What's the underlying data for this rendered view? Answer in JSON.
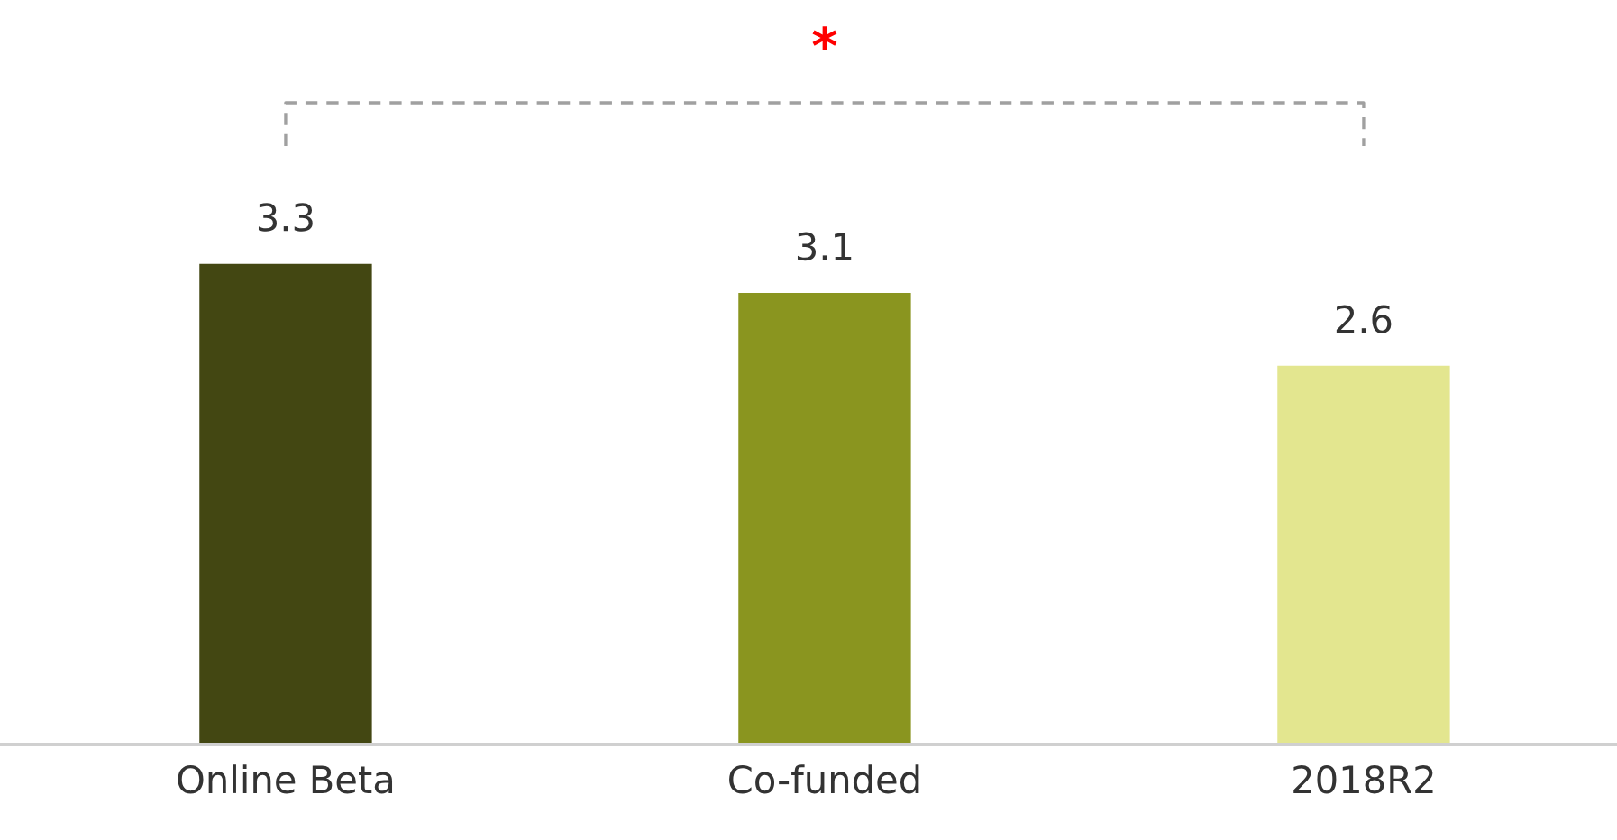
{
  "chart_data": {
    "type": "bar",
    "categories": [
      "Online Beta",
      "Co-funded",
      "2018R2"
    ],
    "values": [
      3.3,
      3.1,
      2.6
    ],
    "colors": [
      "#434712",
      "#8a951f",
      "#e3e68f"
    ],
    "data_labels": true,
    "grid": false,
    "legend": false,
    "annotations": [
      "*"
    ]
  }
}
